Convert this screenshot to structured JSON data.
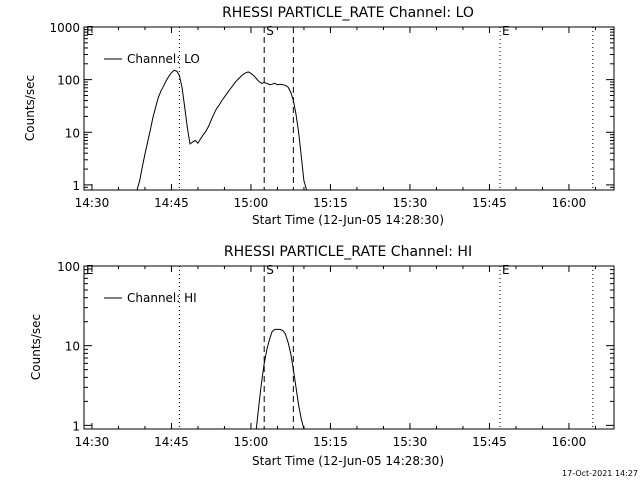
{
  "footer": {
    "timestamp": "17-Oct-2021 14:27"
  },
  "chart_data": [
    {
      "type": "line",
      "title": "RHESSI PARTICLE_RATE Channel: LO",
      "xlabel": "Start Time (12-Jun-05 14:28:30)",
      "ylabel": "Counts/sec",
      "y_scale": "log",
      "xlim": [
        "14:28:30",
        "16:08:30"
      ],
      "ylim": [
        0.8,
        1000
      ],
      "x_ticks": [
        "14:30",
        "14:45",
        "15:00",
        "15:15",
        "15:30",
        "15:45",
        "16:00"
      ],
      "y_ticks": [
        "1",
        "10",
        "100",
        "1000"
      ],
      "legend": {
        "position": "top-left",
        "entries": [
          "Channel: LO"
        ]
      },
      "markers": [
        {
          "label": "E",
          "time": "14:28:30",
          "style": "dotted"
        },
        {
          "label": "",
          "time": "14:46:30",
          "style": "dotted"
        },
        {
          "label": "S",
          "time": "15:02:30",
          "style": "dashed"
        },
        {
          "label": "",
          "time": "15:08:00",
          "style": "dashed"
        },
        {
          "label": "E",
          "time": "15:47:00",
          "style": "dotted"
        },
        {
          "label": "",
          "time": "16:04:30",
          "style": "dotted"
        }
      ],
      "series": [
        {
          "name": "Channel: LO",
          "x": [
            "14:38:30",
            "14:39:00",
            "14:39:30",
            "14:40:00",
            "14:40:30",
            "14:41:00",
            "14:41:30",
            "14:42:00",
            "14:42:30",
            "14:43:00",
            "14:43:30",
            "14:44:00",
            "14:44:30",
            "14:45:00",
            "14:45:30",
            "14:46:00",
            "14:46:30",
            "14:47:00",
            "14:47:30",
            "14:48:00",
            "14:48:30",
            "14:49:00",
            "14:49:30",
            "14:50:00",
            "14:50:30",
            "14:51:00",
            "14:51:30",
            "14:52:00",
            "14:52:30",
            "14:53:00",
            "14:53:30",
            "14:54:00",
            "14:54:30",
            "14:55:00",
            "14:55:30",
            "14:56:00",
            "14:56:30",
            "14:57:00",
            "14:57:30",
            "14:58:00",
            "14:58:30",
            "14:59:00",
            "14:59:30",
            "15:00:00",
            "15:00:30",
            "15:01:00",
            "15:01:30",
            "15:02:00",
            "15:02:30",
            "15:03:00",
            "15:03:30",
            "15:04:00",
            "15:04:30",
            "15:05:00",
            "15:05:30",
            "15:06:00",
            "15:06:30",
            "15:07:00",
            "15:07:30",
            "15:08:00",
            "15:08:30",
            "15:09:00",
            "15:09:30",
            "15:10:00",
            "15:10:30"
          ],
          "y": [
            0.8,
            1.2,
            2.2,
            3.8,
            6.5,
            11,
            19,
            30,
            45,
            60,
            75,
            95,
            115,
            135,
            150,
            145,
            120,
            70,
            30,
            12,
            6,
            6.5,
            7,
            6.2,
            7.5,
            9,
            10.5,
            13,
            17,
            22,
            28,
            33,
            40,
            47,
            55,
            65,
            75,
            88,
            100,
            112,
            125,
            135,
            140,
            132,
            120,
            105,
            92,
            85,
            88,
            85,
            80,
            82,
            85,
            80,
            82,
            80,
            78,
            72,
            58,
            40,
            22,
            10,
            3.5,
            1.2,
            0.8
          ]
        }
      ]
    },
    {
      "type": "line",
      "title": "RHESSI PARTICLE_RATE Channel: HI",
      "xlabel": "Start Time (12-Jun-05 14:28:30)",
      "ylabel": "Counts/sec",
      "y_scale": "log",
      "xlim": [
        "14:28:30",
        "16:08:30"
      ],
      "ylim": [
        0.9,
        100
      ],
      "x_ticks": [
        "14:30",
        "14:45",
        "15:00",
        "15:15",
        "15:30",
        "15:45",
        "16:00"
      ],
      "y_ticks": [
        "1",
        "10",
        "100"
      ],
      "legend": {
        "position": "top-left",
        "entries": [
          "Channel: HI"
        ]
      },
      "markers": [
        {
          "label": "E",
          "time": "14:28:30",
          "style": "dotted"
        },
        {
          "label": "",
          "time": "14:46:30",
          "style": "dotted"
        },
        {
          "label": "S",
          "time": "15:02:30",
          "style": "dashed"
        },
        {
          "label": "",
          "time": "15:08:00",
          "style": "dashed"
        },
        {
          "label": "E",
          "time": "15:47:00",
          "style": "dotted"
        },
        {
          "label": "",
          "time": "16:04:30",
          "style": "dotted"
        }
      ],
      "series": [
        {
          "name": "Channel: HI",
          "x": [
            "15:01:00",
            "15:01:30",
            "15:02:00",
            "15:02:30",
            "15:03:00",
            "15:03:30",
            "15:04:00",
            "15:04:30",
            "15:05:00",
            "15:05:30",
            "15:06:00",
            "15:06:30",
            "15:07:00",
            "15:07:30",
            "15:08:00",
            "15:08:30",
            "15:09:00",
            "15:09:30",
            "15:10:00"
          ],
          "y": [
            0.9,
            1.8,
            3.5,
            6,
            9,
            12,
            15,
            16,
            16,
            16,
            15.5,
            14,
            11,
            8,
            5,
            3,
            1.8,
            1.2,
            0.9
          ]
        }
      ]
    }
  ]
}
